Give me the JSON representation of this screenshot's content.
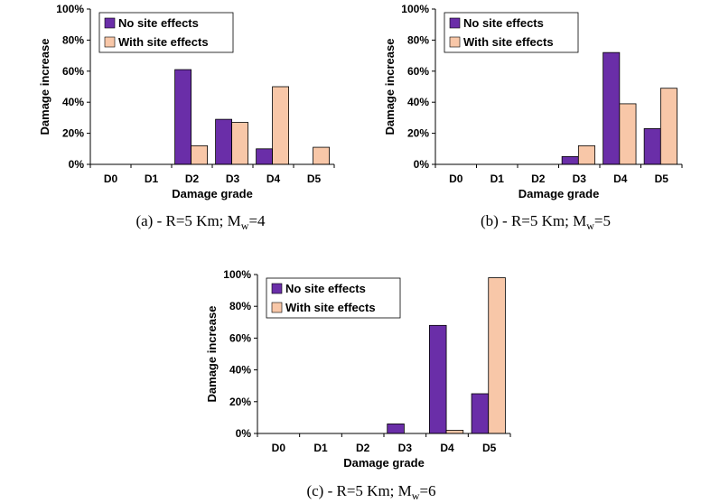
{
  "figure": {
    "colors": {
      "no_site": "#6a2ea8",
      "with_site": "#f8c7a8",
      "axis": "#000000"
    }
  },
  "chart_data": [
    {
      "type": "bar",
      "caption_main": "(a) - R=5 Km; M",
      "caption_sub": "w",
      "caption_tail": "=4",
      "xlabel": "Damage grade",
      "ylabel": "Damage increase",
      "categories": [
        "D0",
        "D1",
        "D2",
        "D3",
        "D4",
        "D5"
      ],
      "y_ticks": [
        "0%",
        "20%",
        "40%",
        "60%",
        "80%",
        "100%"
      ],
      "ylim": [
        0,
        100
      ],
      "series": [
        {
          "name": "No site effects",
          "values": [
            0,
            0,
            61,
            29,
            10,
            0
          ]
        },
        {
          "name": "With site effects",
          "values": [
            0,
            0,
            12,
            27,
            50,
            11
          ]
        }
      ]
    },
    {
      "type": "bar",
      "caption_main": "(b) - R=5 Km; M",
      "caption_sub": "w",
      "caption_tail": "=5",
      "xlabel": "Damage grade",
      "ylabel": "Damage increase",
      "categories": [
        "D0",
        "D1",
        "D2",
        "D3",
        "D4",
        "D5"
      ],
      "y_ticks": [
        "0%",
        "20%",
        "40%",
        "60%",
        "80%",
        "100%"
      ],
      "ylim": [
        0,
        100
      ],
      "series": [
        {
          "name": "No site effects",
          "values": [
            0,
            0,
            0,
            5,
            72,
            23
          ]
        },
        {
          "name": "With site effects",
          "values": [
            0,
            0,
            0,
            12,
            39,
            49
          ]
        }
      ]
    },
    {
      "type": "bar",
      "caption_main": "(c) - R=5 Km; M",
      "caption_sub": "w",
      "caption_tail": "=6",
      "xlabel": "Damage grade",
      "ylabel": "Damage increase",
      "categories": [
        "D0",
        "D1",
        "D2",
        "D3",
        "D4",
        "D5"
      ],
      "y_ticks": [
        "0%",
        "20%",
        "40%",
        "60%",
        "80%",
        "100%"
      ],
      "ylim": [
        0,
        100
      ],
      "series": [
        {
          "name": "No site effects",
          "values": [
            0,
            0,
            0,
            6,
            68,
            25
          ]
        },
        {
          "name": "With site effects",
          "values": [
            0,
            0,
            0,
            0,
            2,
            98
          ]
        }
      ]
    }
  ]
}
